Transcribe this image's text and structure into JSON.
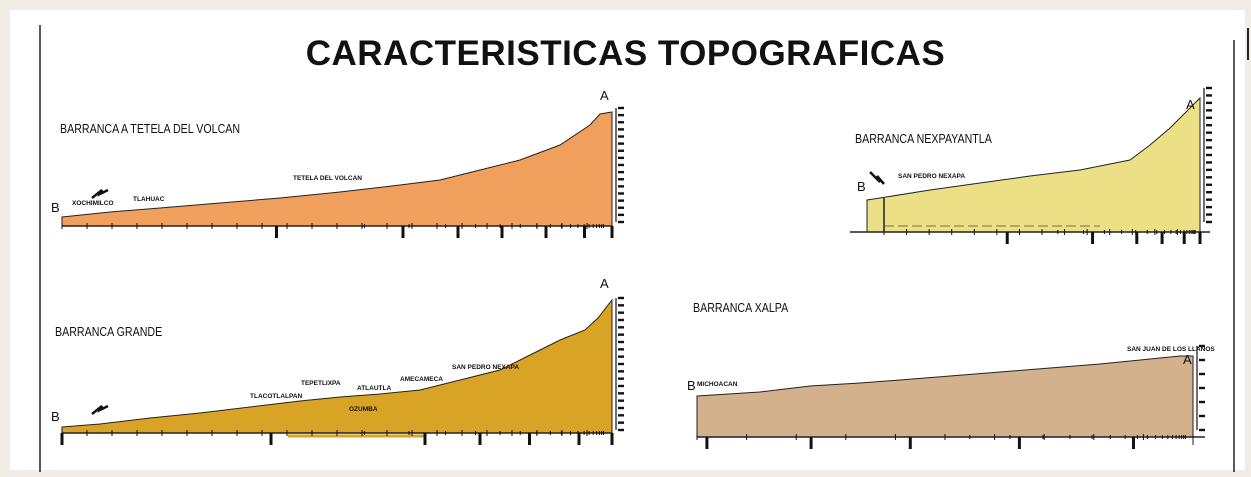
{
  "title": "CARACTERISTICAS TOPOGRAFICAS",
  "colors": {
    "tetela": "#f0a05c",
    "nexpayantla": "#ece087",
    "grande": "#d9a326",
    "xalpa": "#d3b18d"
  },
  "profiles": [
    {
      "id": "tetela",
      "title": "BARRANCA A TETELA DEL VOLCAN",
      "start_label": "B",
      "end_label": "A",
      "places": [
        "XOCHIMILCO",
        "TLAHUAC",
        "TETELA DEL VOLCAN"
      ]
    },
    {
      "id": "nexpayantla",
      "title": "BARRANCA NEXPAYANTLA",
      "start_label": "B",
      "end_label": "A",
      "places": [
        "SAN PEDRO NEXAPA"
      ]
    },
    {
      "id": "grande",
      "title": "BARRANCA GRANDE",
      "start_label": "B",
      "end_label": "A",
      "places": [
        "TLACOTLALPAN",
        "TEPETLIXPA",
        "ATLAUTLA",
        "OZUMBA",
        "AMECAMECA",
        "SAN PEDRO NEXAPA"
      ]
    },
    {
      "id": "xalpa",
      "title": "BARRANCA XALPA",
      "start_label": "B",
      "end_label": "A",
      "places": [
        "MICHOACAN",
        "SAN JUAN DE LOS LLANOS"
      ]
    }
  ]
}
